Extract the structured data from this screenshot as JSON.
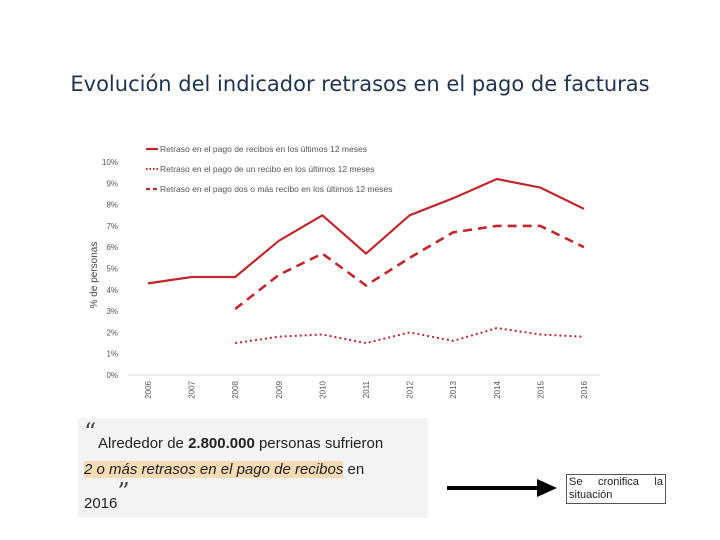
{
  "slide_title": "Evolución del indicador retrasos en el pago de facturas",
  "chart_data": {
    "type": "line",
    "title": "",
    "xlabel": "",
    "ylabel": "% de personas",
    "ylim": [
      0,
      10
    ],
    "yticks": [
      "0%",
      "1%",
      "2%",
      "3%",
      "4%",
      "5%",
      "6%",
      "7%",
      "8%",
      "9%",
      "10%"
    ],
    "categories": [
      "2006",
      "2007",
      "2008",
      "2009",
      "2010",
      "2011",
      "2012",
      "2013",
      "2014",
      "2015",
      "2016"
    ],
    "series": [
      {
        "name": "Retraso en el pago de recibos en los últimos 12 meses",
        "style": "solid",
        "values": [
          4.3,
          4.6,
          4.6,
          6.3,
          7.5,
          5.7,
          7.5,
          8.3,
          9.2,
          8.8,
          7.8
        ]
      },
      {
        "name": "Retraso en el pago de un recibo en los últimos 12 meses",
        "style": "dotted",
        "values": [
          null,
          null,
          1.5,
          1.8,
          1.9,
          1.5,
          2.0,
          1.6,
          2.2,
          1.9,
          1.8
        ]
      },
      {
        "name": "Retraso en el pago dos o más recibo en los últimos 12 meses",
        "style": "dashed",
        "values": [
          null,
          null,
          3.1,
          4.7,
          5.7,
          4.2,
          5.5,
          6.7,
          7.0,
          7.0,
          6.0
        ]
      }
    ],
    "color": "#c0282d",
    "legend_position": "top-left"
  },
  "quote": {
    "open_mark": "“",
    "line1_pre": "Alrededor de ",
    "line1_bold": "2.800.000",
    "line1_post": " personas sufrieron",
    "line2_highlight": "2 o más retrasos en el pago de recibos",
    "line2_post": " en",
    "line3": "2016",
    "close_mark": "”"
  },
  "side_note": "Se cronifica la situación"
}
